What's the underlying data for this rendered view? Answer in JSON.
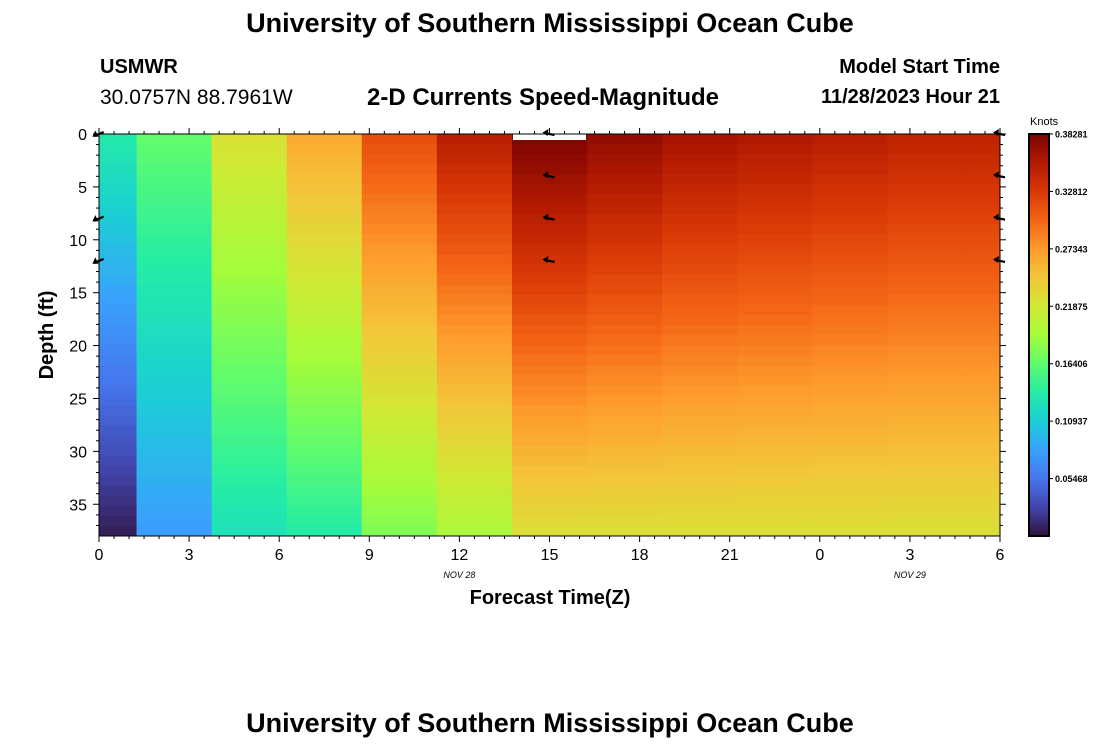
{
  "header": {
    "title": "University of Southern Mississippi Ocean Cube",
    "station": "USMWR",
    "coordinates": "30.0757N  88.7961W",
    "subtitle": "2-D Currents Speed-Magnitude",
    "model_start_label": "Model Start Time",
    "model_start_value": "11/28/2023 Hour 21"
  },
  "footer": {
    "title": "University of Southern Mississippi Ocean Cube"
  },
  "chart_data": {
    "type": "heatmap",
    "title": "2-D Currents Speed-Magnitude",
    "xlabel": "Forecast Time(Z)",
    "ylabel": "Depth (ft)",
    "x_tick_labels": [
      "0",
      "3",
      "6",
      "9",
      "12",
      "15",
      "18",
      "21",
      "0",
      "3",
      "6"
    ],
    "x_tick_hours": [
      0,
      3,
      6,
      9,
      12,
      15,
      18,
      21,
      24,
      27,
      30
    ],
    "date_labels": [
      {
        "label": "NOV 28",
        "hour": 12
      },
      {
        "label": "NOV 29",
        "hour": 27
      }
    ],
    "xlim": [
      0,
      30
    ],
    "ylim": [
      0,
      38
    ],
    "y_ticks": [
      0,
      5,
      10,
      15,
      20,
      25,
      30,
      35
    ],
    "y_reversed": true,
    "colorbar": {
      "title": "Knots",
      "min": 0.0,
      "max": 0.38281,
      "tick_values": [
        0.38281,
        0.32812,
        0.27343,
        0.21875,
        0.16406,
        0.10937,
        0.05468
      ],
      "tick_labels": [
        "0.38281",
        "0.32812",
        "0.27343",
        "0.21875",
        "0.16406",
        "0.10937",
        "0.05468"
      ],
      "colors": [
        "#30123b",
        "#4145ab",
        "#4675ed",
        "#39a2fc",
        "#1bcfd4",
        "#24eca6",
        "#61fc6c",
        "#a4fc3b",
        "#d1e834",
        "#f3c63a",
        "#fe9b2d",
        "#f36315",
        "#d93806",
        "#b11901",
        "#7a0402"
      ]
    },
    "columns": [
      {
        "start_hour": 0.0,
        "end_hour": 1.25,
        "top": 0.135,
        "bottom": 0.006
      },
      {
        "start_hour": 1.25,
        "end_hour": 3.75,
        "top": 0.165,
        "bottom": 0.078
      },
      {
        "start_hour": 3.75,
        "end_hour": 6.25,
        "top": 0.225,
        "bottom": 0.125
      },
      {
        "start_hour": 6.25,
        "end_hour": 8.75,
        "top": 0.265,
        "bottom": 0.135
      },
      {
        "start_hour": 8.75,
        "end_hour": 11.25,
        "top": 0.315,
        "bottom": 0.175
      },
      {
        "start_hour": 11.25,
        "end_hour": 13.75,
        "top": 0.352,
        "bottom": 0.195
      },
      {
        "start_hour": 13.75,
        "end_hour": 16.25,
        "top": 0.383,
        "bottom": 0.225
      },
      {
        "start_hour": 16.25,
        "end_hour": 18.75,
        "top": 0.372,
        "bottom": 0.225
      },
      {
        "start_hour": 18.75,
        "end_hour": 21.25,
        "top": 0.362,
        "bottom": 0.225
      },
      {
        "start_hour": 21.25,
        "end_hour": 23.75,
        "top": 0.357,
        "bottom": 0.225
      },
      {
        "start_hour": 23.75,
        "end_hour": 26.25,
        "top": 0.352,
        "bottom": 0.225
      },
      {
        "start_hour": 26.25,
        "end_hour": 28.75,
        "top": 0.347,
        "bottom": 0.225
      },
      {
        "start_hour": 28.75,
        "end_hour": 30.0,
        "top": 0.347,
        "bottom": 0.225
      }
    ],
    "vectors": [
      {
        "hour": 0,
        "depth": 0,
        "direction": "southwest"
      },
      {
        "hour": 0,
        "depth": 8,
        "direction": "southwest"
      },
      {
        "hour": 0,
        "depth": 12,
        "direction": "southwest"
      },
      {
        "hour": 15,
        "depth": 0,
        "direction": "west"
      },
      {
        "hour": 15,
        "depth": 4,
        "direction": "west"
      },
      {
        "hour": 15,
        "depth": 8,
        "direction": "west"
      },
      {
        "hour": 15,
        "depth": 12,
        "direction": "west"
      },
      {
        "hour": 30,
        "depth": 0,
        "direction": "west"
      },
      {
        "hour": 30,
        "depth": 4,
        "direction": "west"
      },
      {
        "hour": 30,
        "depth": 8,
        "direction": "west"
      },
      {
        "hour": 30,
        "depth": 12,
        "direction": "west"
      }
    ],
    "legend": "colorbar right"
  }
}
